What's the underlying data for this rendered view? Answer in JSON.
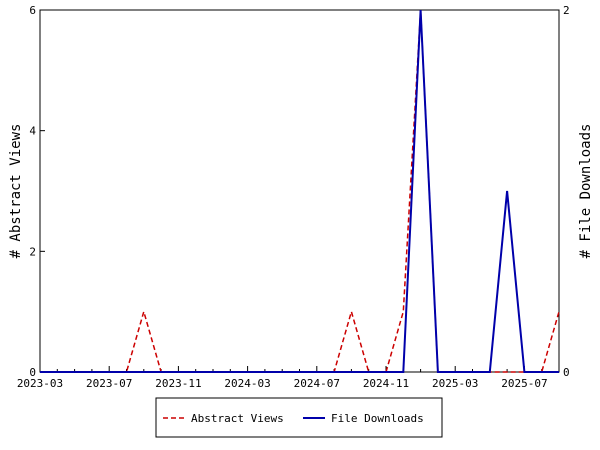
{
  "chart_data": {
    "type": "line",
    "categories": [
      "2023-03",
      null,
      null,
      null,
      "2023-07",
      null,
      null,
      null,
      "2023-11",
      null,
      null,
      null,
      "2024-03",
      null,
      null,
      null,
      "2024-07",
      null,
      null,
      null,
      "2024-11",
      null,
      null,
      null,
      "2025-03",
      null,
      null,
      null,
      "2025-07",
      null,
      null
    ],
    "series": [
      {
        "name": "Abstract Views",
        "color": "#cc0000",
        "dash": true,
        "values": [
          0,
          0,
          0,
          0,
          0,
          0,
          1,
          0,
          0,
          0,
          0,
          0,
          0,
          0,
          0,
          0,
          0,
          0,
          1,
          0,
          0,
          1,
          6,
          0,
          0,
          0,
          0,
          0,
          0,
          0,
          1
        ]
      },
      {
        "name": "File Downloads",
        "color": "#0000aa",
        "axis": "y2",
        "values": [
          0,
          0,
          0,
          0,
          0,
          0,
          0,
          0,
          0,
          0,
          0,
          0,
          0,
          0,
          0,
          0,
          0,
          0,
          0,
          0,
          0,
          0,
          2,
          0,
          0,
          0,
          0,
          1,
          0,
          0,
          0
        ]
      }
    ],
    "ylabel": "# Abstract Views",
    "y2label": "# File Downloads",
    "ylim": [
      0,
      6
    ],
    "yticks": [
      0,
      2,
      4,
      6
    ],
    "y2lim": [
      0,
      2
    ],
    "y2ticks": [
      0,
      2
    ],
    "legend": "bottom"
  }
}
